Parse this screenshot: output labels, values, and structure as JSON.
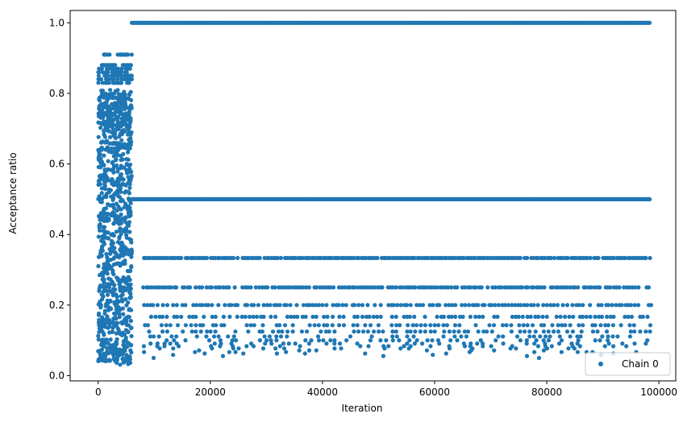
{
  "chart_data": {
    "type": "scatter",
    "xlabel": "Iteration",
    "ylabel": "Acceptance ratio",
    "xlim": [
      -5000,
      103000
    ],
    "ylim": [
      -0.015,
      1.035
    ],
    "xticks": [
      0,
      20000,
      40000,
      60000,
      80000,
      100000
    ],
    "yticks": [
      0.0,
      0.2,
      0.4,
      0.6,
      0.8,
      1.0
    ],
    "xtick_labels": [
      "0",
      "20000",
      "40000",
      "60000",
      "80000",
      "100000"
    ],
    "ytick_labels": [
      "0.0",
      "0.2",
      "0.4",
      "0.6",
      "0.8",
      "1.0"
    ],
    "grid": false,
    "legend_position": "bottom-right",
    "series": [
      {
        "name": "Chain 0",
        "color": "#1f77b4",
        "marker": "circle",
        "warmup_range": [
          0,
          6000
        ],
        "warmup_values": [
          0.91,
          0.88,
          0.87,
          0.86,
          0.85,
          0.84,
          0.83,
          0.8,
          0.79,
          0.78,
          0.77,
          0.76,
          0.75,
          0.74,
          0.73,
          0.72,
          0.71,
          0.7,
          0.68,
          0.66,
          0.65,
          0.64,
          0.62,
          0.6,
          0.58,
          0.56,
          0.55,
          0.54,
          0.52,
          0.5,
          0.48,
          0.46,
          0.45,
          0.44,
          0.42,
          0.4,
          0.38,
          0.36,
          0.35,
          0.34,
          0.32,
          0.3,
          0.28,
          0.26,
          0.25,
          0.24,
          0.22,
          0.2,
          0.18,
          0.16,
          0.15,
          0.14,
          0.12,
          0.1,
          0.08,
          0.07,
          0.06,
          0.05,
          0.04
        ],
        "plateau_values": [
          1.0,
          0.5
        ],
        "plateau_range": [
          6000,
          98500
        ],
        "level_values": [
          0.3333,
          0.25,
          0.2,
          0.1667,
          0.1429,
          0.125,
          0.1111,
          0.1,
          0.0909,
          0.0833,
          0.0769,
          0.0714,
          0.0667,
          0.0625,
          0.0588,
          0.0556,
          0.05
        ],
        "level_range": [
          8000,
          98500
        ]
      }
    ]
  }
}
